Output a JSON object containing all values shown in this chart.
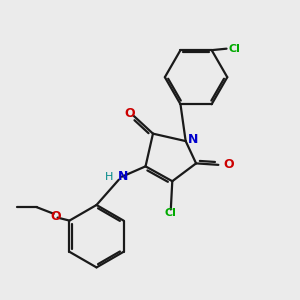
{
  "background_color": "#ebebeb",
  "bond_color": "#1a1a1a",
  "atom_colors": {
    "N": "#0000cc",
    "O": "#cc0000",
    "Cl": "#00aa00",
    "NH_H": "#008888",
    "C": "#1a1a1a"
  },
  "figsize": [
    3.0,
    3.0
  ],
  "dpi": 100
}
